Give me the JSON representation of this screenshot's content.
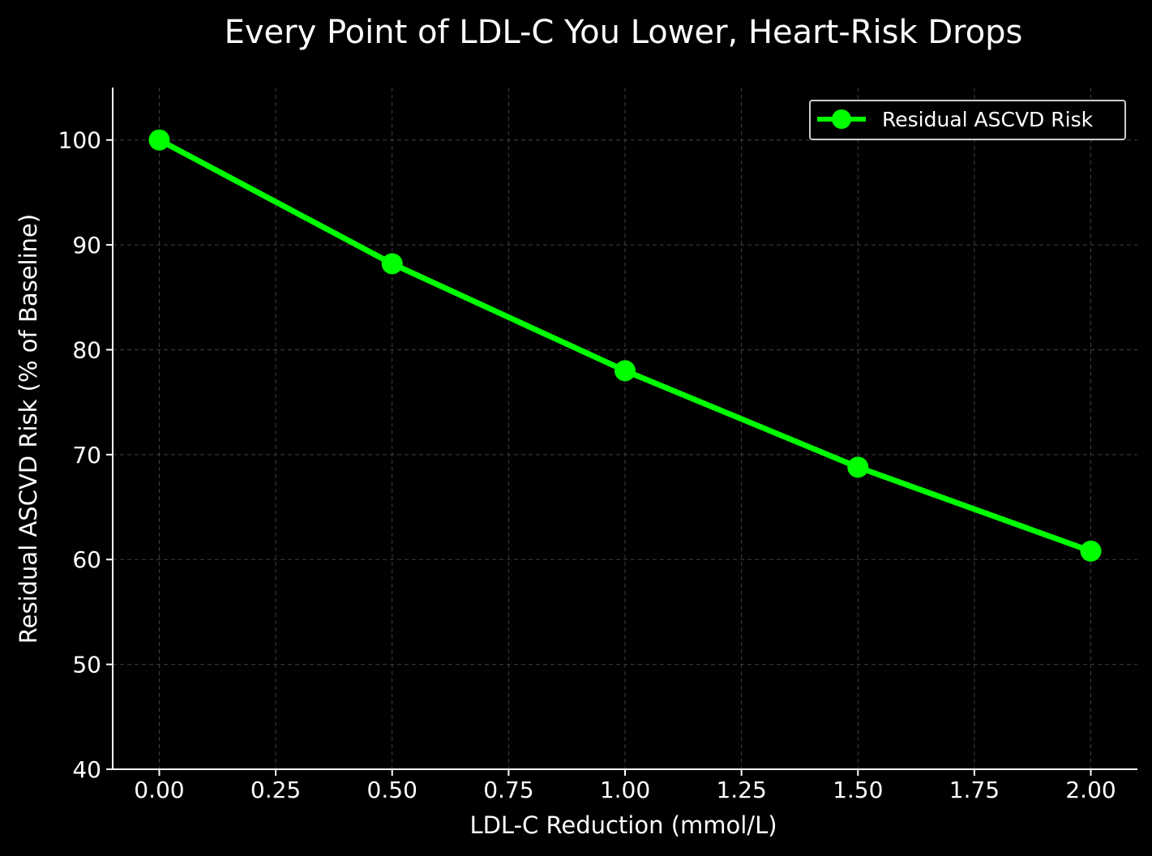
{
  "chart_data": {
    "type": "line",
    "title": "Every Point of LDL-C You Lower, Heart-Risk Drops",
    "xlabel": "LDL-C Reduction (mmol/L)",
    "ylabel": "Residual ASCVD Risk (% of Baseline)",
    "x": [
      0.0,
      0.5,
      1.0,
      1.5,
      2.0
    ],
    "series": [
      {
        "name": "Residual ASCVD Risk",
        "values": [
          100.0,
          88.2,
          78.0,
          68.8,
          60.8
        ],
        "color": "#00ff00",
        "marker": "circle"
      }
    ],
    "xlim": [
      -0.1,
      2.1
    ],
    "ylim": [
      40,
      105
    ],
    "xticks": [
      "0.00",
      "0.25",
      "0.50",
      "0.75",
      "1.00",
      "1.25",
      "1.50",
      "1.75",
      "2.00"
    ],
    "xtick_values": [
      0.0,
      0.25,
      0.5,
      0.75,
      1.0,
      1.25,
      1.5,
      1.75,
      2.0
    ],
    "yticks": [
      "40",
      "50",
      "60",
      "70",
      "80",
      "90",
      "100"
    ],
    "ytick_values": [
      40,
      50,
      60,
      70,
      80,
      90,
      100
    ],
    "grid": true,
    "legend_position": "upper right",
    "background_color": "#000000",
    "axis_color": "#ffffff",
    "grid_color": "#404040"
  }
}
